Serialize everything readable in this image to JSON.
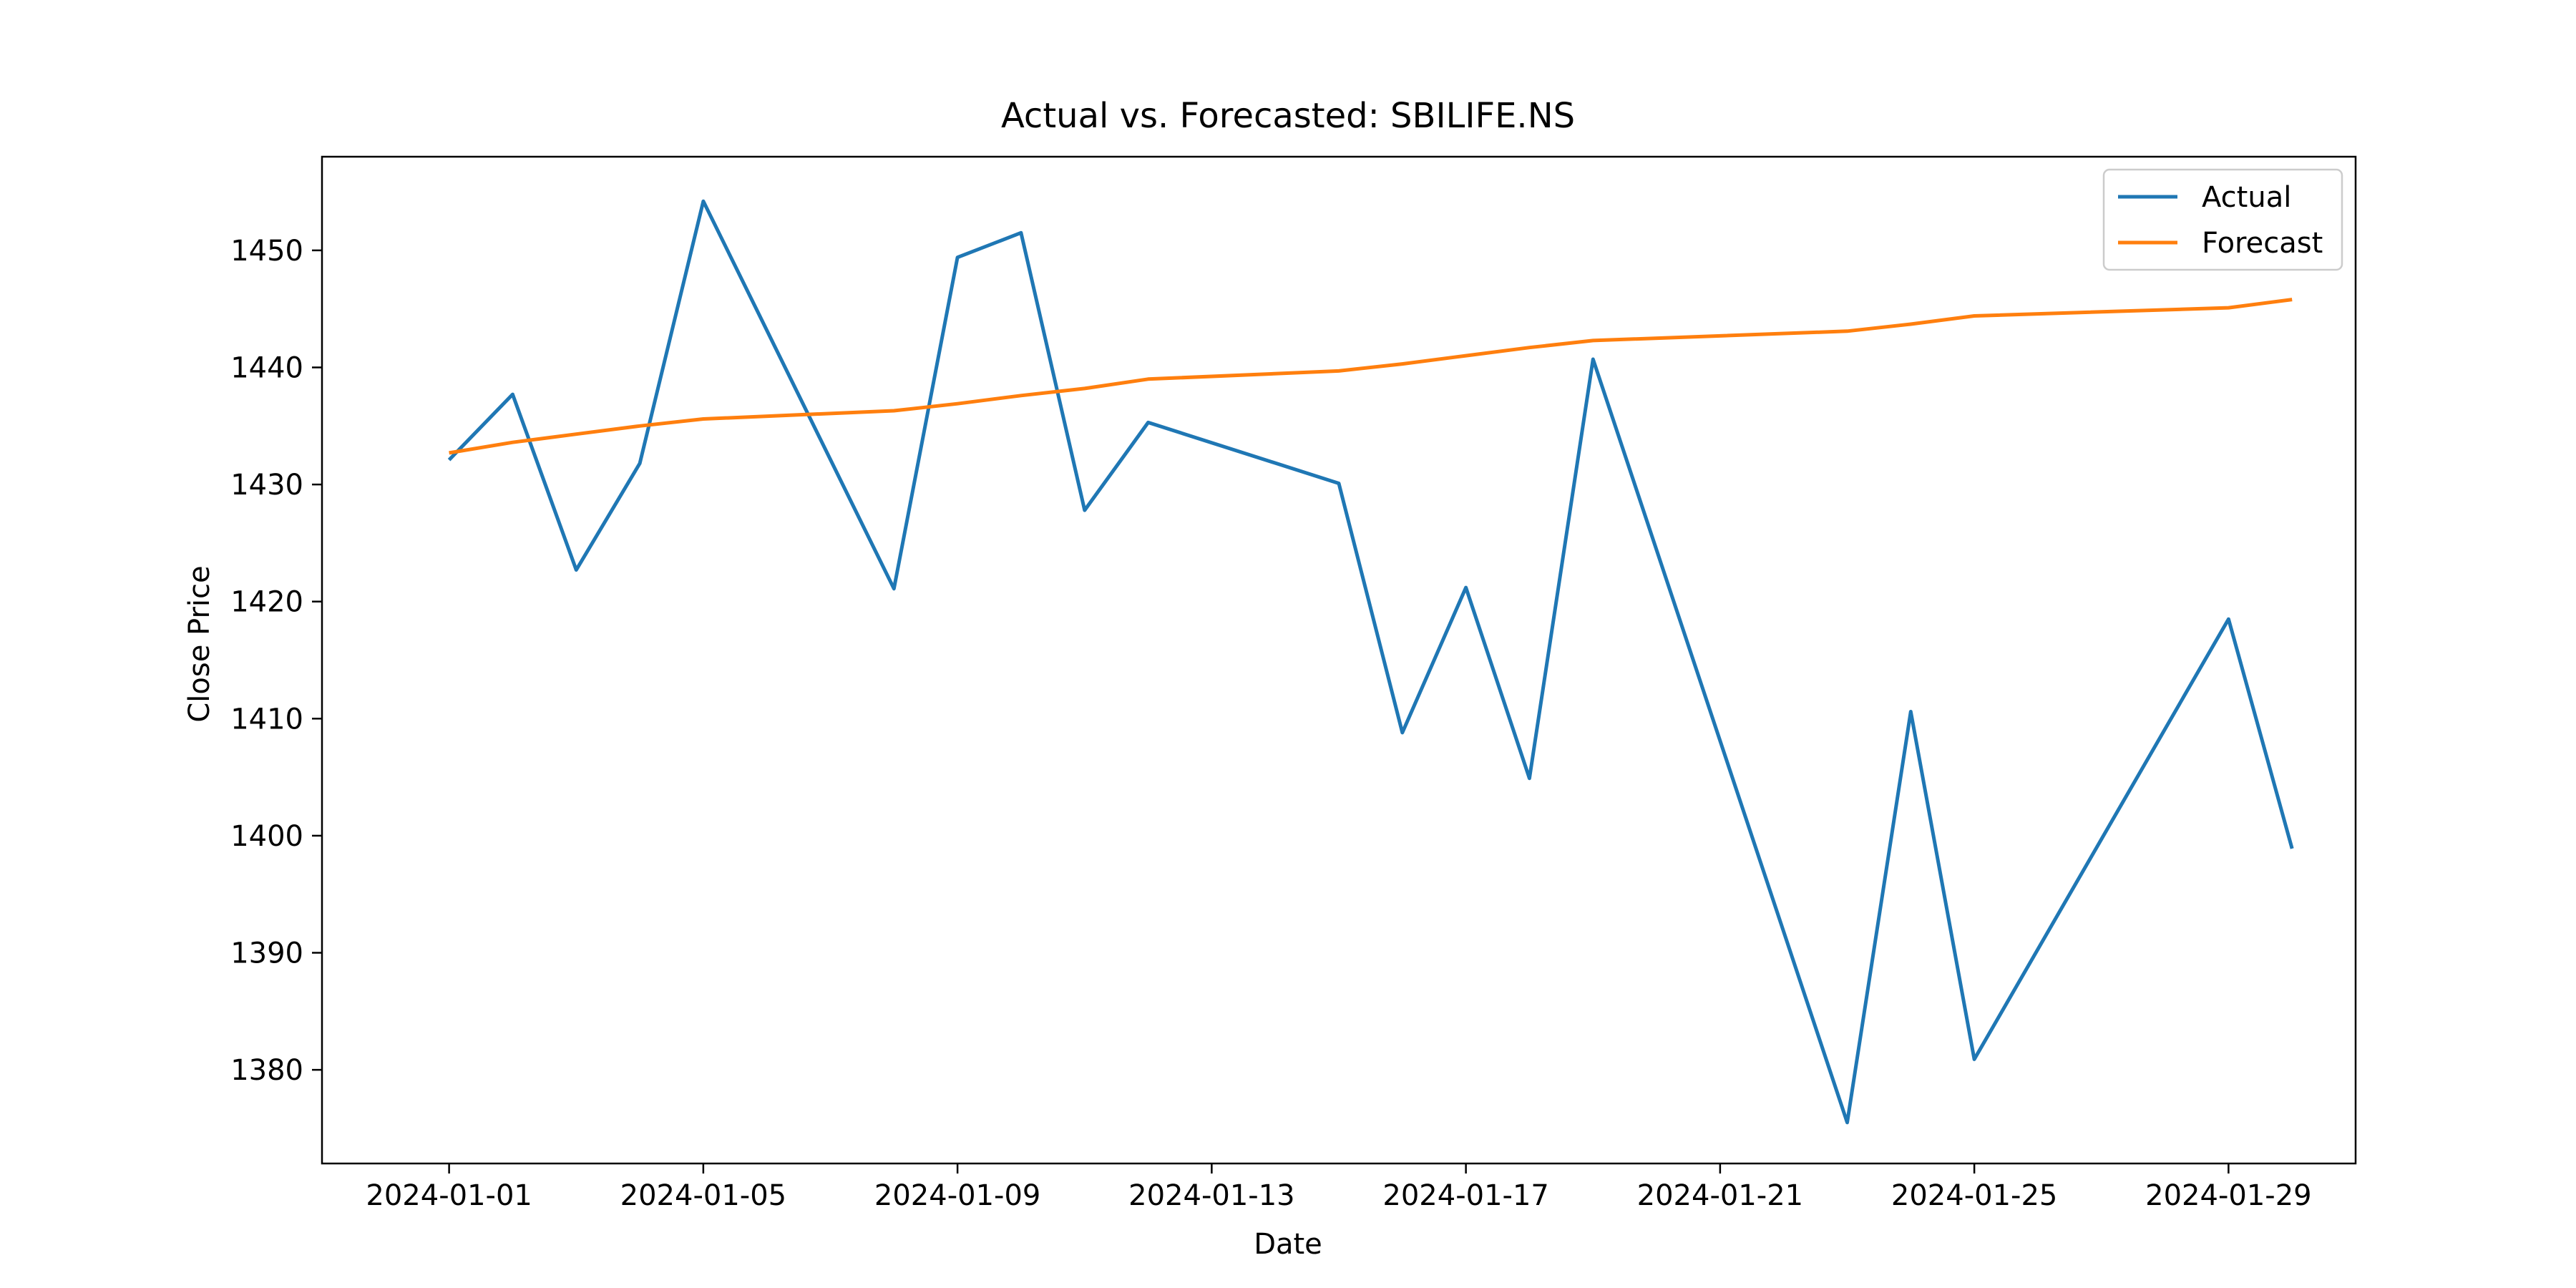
{
  "chart_data": {
    "type": "line",
    "title": "Actual vs. Forecasted: SBILIFE.NS",
    "xlabel": "Date",
    "ylabel": "Close Price",
    "x_tick_labels": [
      "2024-01-01",
      "2024-01-05",
      "2024-01-09",
      "2024-01-13",
      "2024-01-17",
      "2024-01-21",
      "2024-01-25",
      "2024-01-29"
    ],
    "y_tick_labels": [
      "1380",
      "1390",
      "1400",
      "1410",
      "1420",
      "1430",
      "1440",
      "1450"
    ],
    "xlim": [
      "2023-12-30",
      "2024-01-31"
    ],
    "ylim": [
      1372,
      1458
    ],
    "legend_position": "top-right",
    "grid": false,
    "series": [
      {
        "name": "Actual",
        "color": "#1f77b4",
        "x": [
          "2024-01-01",
          "2024-01-02",
          "2024-01-03",
          "2024-01-04",
          "2024-01-05",
          "2024-01-08",
          "2024-01-09",
          "2024-01-10",
          "2024-01-11",
          "2024-01-12",
          "2024-01-15",
          "2024-01-16",
          "2024-01-17",
          "2024-01-18",
          "2024-01-19",
          "2024-01-23",
          "2024-01-24",
          "2024-01-25",
          "2024-01-29",
          "2024-01-30"
        ],
        "values": [
          1432.1,
          1437.7,
          1422.7,
          1431.8,
          1454.2,
          1421.1,
          1449.4,
          1451.5,
          1427.8,
          1435.3,
          1430.1,
          1408.8,
          1421.2,
          1404.9,
          1440.7,
          1375.5,
          1410.6,
          1380.9,
          1418.5,
          1398.9
        ]
      },
      {
        "name": "Forecast",
        "color": "#ff7f0e",
        "x": [
          "2024-01-01",
          "2024-01-02",
          "2024-01-03",
          "2024-01-04",
          "2024-01-05",
          "2024-01-08",
          "2024-01-09",
          "2024-01-10",
          "2024-01-11",
          "2024-01-12",
          "2024-01-15",
          "2024-01-16",
          "2024-01-17",
          "2024-01-18",
          "2024-01-19",
          "2024-01-23",
          "2024-01-24",
          "2024-01-25",
          "2024-01-29",
          "2024-01-30"
        ],
        "values": [
          1432.7,
          1433.6,
          1434.3,
          1435.0,
          1435.6,
          1436.3,
          1436.9,
          1437.6,
          1438.2,
          1439.0,
          1439.7,
          1440.3,
          1441.0,
          1441.7,
          1442.3,
          1443.1,
          1443.7,
          1444.4,
          1445.1,
          1445.8
        ]
      }
    ]
  }
}
